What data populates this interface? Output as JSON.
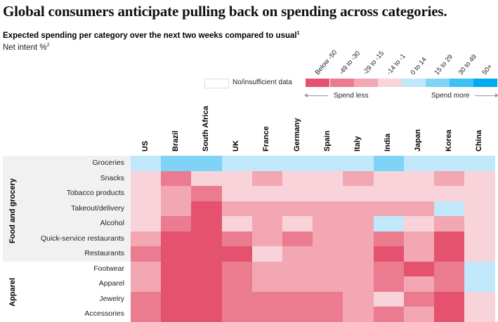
{
  "title": "Global consumers anticipate pulling back on spending across categories.",
  "subtitle": "Expected spending per category over the next two weeks compared to usual",
  "subtitle_footnote": "1",
  "unit": "Net intent %",
  "unit_footnote": "2",
  "legend": {
    "no_data_label": "No/insufficient data",
    "no_data_color": "#FFFFFF",
    "bins": [
      {
        "label": "Below -50",
        "color": "#E5526E"
      },
      {
        "label": "-49 to -30",
        "color": "#EB7B8E"
      },
      {
        "label": "-29 to -15",
        "color": "#F2A7B3"
      },
      {
        "label": "-14 to -1",
        "color": "#F8D3DA"
      },
      {
        "label": "0 to 14",
        "color": "#C1E8FA"
      },
      {
        "label": "15 to 29",
        "color": "#7FD3F7"
      },
      {
        "label": "30 to 49",
        "color": "#3FC0F5"
      },
      {
        "label": "50+",
        "color": "#00A9F4"
      }
    ],
    "spend_less": "Spend less",
    "spend_more": "Spend more"
  },
  "chart_data": {
    "type": "heatmap",
    "title": "Global consumers anticipate pulling back on spending across categories.",
    "subtitle": "Expected spending per category over the next two weeks compared to usual",
    "value_label": "Net intent %",
    "columns": [
      "US",
      "Brazil",
      "South Africa",
      "UK",
      "France",
      "Germany",
      "Spain",
      "Italy",
      "India",
      "Japan",
      "Korea",
      "China"
    ],
    "groups": [
      {
        "name": "Food and grocery",
        "rows": [
          {
            "label": "Groceries",
            "bins": [
              "0 to 14",
              "15 to 29",
              "15 to 29",
              "0 to 14",
              "0 to 14",
              "0 to 14",
              "0 to 14",
              "0 to 14",
              "15 to 29",
              "0 to 14",
              "0 to 14",
              "0 to 14"
            ]
          },
          {
            "label": "Snacks",
            "bins": [
              "-14 to -1",
              "-49 to -30",
              "-14 to -1",
              "-14 to -1",
              "-29 to -15",
              "-14 to -1",
              "-14 to -1",
              "-29 to -15",
              "-14 to -1",
              "-14 to -1",
              "-29 to -15",
              "-14 to -1"
            ]
          },
          {
            "label": "Tobacco products",
            "bins": [
              "-14 to -1",
              "-29 to -15",
              "-49 to -30",
              "-14 to -1",
              "-14 to -1",
              "-14 to -1",
              "-14 to -1",
              "-14 to -1",
              "-14 to -1",
              "-14 to -1",
              "-14 to -1",
              "-14 to -1"
            ]
          },
          {
            "label": "Takeout/delivery",
            "bins": [
              "-14 to -1",
              "-29 to -15",
              "Below -50",
              "-29 to -15",
              "-29 to -15",
              "-29 to -15",
              "-29 to -15",
              "-29 to -15",
              "-29 to -15",
              "-29 to -15",
              "0 to 14",
              "-14 to -1"
            ]
          },
          {
            "label": "Alcohol",
            "bins": [
              "-14 to -1",
              "-49 to -30",
              "Below -50",
              "-14 to -1",
              "-29 to -15",
              "-14 to -1",
              "-29 to -15",
              "-29 to -15",
              "0 to 14",
              "-14 to -1",
              "-29 to -15",
              "-14 to -1"
            ]
          },
          {
            "label": "Quick-service restaurants",
            "bins": [
              "-29 to -15",
              "Below -50",
              "Below -50",
              "-49 to -30",
              "-29 to -15",
              "-49 to -30",
              "-29 to -15",
              "-29 to -15",
              "-49 to -30",
              "-29 to -15",
              "Below -50",
              "-14 to -1"
            ]
          },
          {
            "label": "Restaurants",
            "bins": [
              "-49 to -30",
              "Below -50",
              "Below -50",
              "Below -50",
              "-14 to -1",
              "-29 to -15",
              "-29 to -15",
              "-29 to -15",
              "Below -50",
              "-29 to -15",
              "Below -50",
              "-14 to -1"
            ]
          }
        ]
      },
      {
        "name": "Apparel",
        "rows": [
          {
            "label": "Footwear",
            "bins": [
              "-29 to -15",
              "Below -50",
              "Below -50",
              "-49 to -30",
              "-29 to -15",
              "-29 to -15",
              "-29 to -15",
              "-29 to -15",
              "-49 to -30",
              "Below -50",
              "-49 to -30",
              "0 to 14"
            ]
          },
          {
            "label": "Apparel",
            "bins": [
              "-29 to -15",
              "Below -50",
              "Below -50",
              "-49 to -30",
              "-29 to -15",
              "-29 to -15",
              "-29 to -15",
              "-29 to -15",
              "-49 to -30",
              "-29 to -15",
              "-49 to -30",
              "0 to 14"
            ]
          },
          {
            "label": "Jewelry",
            "bins": [
              "-49 to -30",
              "Below -50",
              "Below -50",
              "-49 to -30",
              "-49 to -30",
              "-49 to -30",
              "-49 to -30",
              "-29 to -15",
              "-14 to -1",
              "-49 to -30",
              "Below -50",
              "-14 to -1"
            ]
          },
          {
            "label": "Accessories",
            "bins": [
              "-49 to -30",
              "Below -50",
              "Below -50",
              "-49 to -30",
              "-49 to -30",
              "-49 to -30",
              "-49 to -30",
              "-29 to -15",
              "-49 to -30",
              "-29 to -15",
              "Below -50",
              "-14 to -1"
            ]
          }
        ]
      }
    ]
  }
}
